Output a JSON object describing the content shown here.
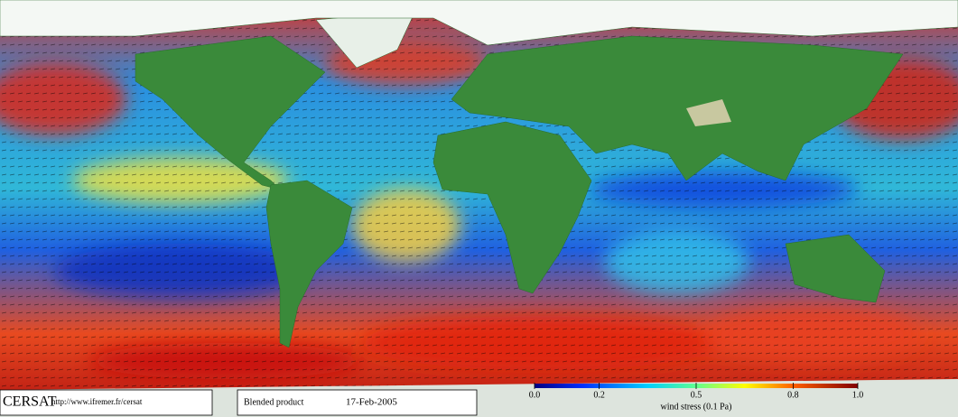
{
  "logo": "CERSAT",
  "url": "http://www.ifremer.fr/cersat",
  "product": "Blended product",
  "date": "17-Feb-2005",
  "colorbar": {
    "label": "wind stress (0.1 Pa)",
    "lim": [
      0,
      1
    ],
    "ticks": [
      {
        "value": 0,
        "label": "0.0"
      },
      0.2,
      0.5,
      0.8,
      {
        "value": 1,
        "label": "1.0"
      }
    ]
  }
}
